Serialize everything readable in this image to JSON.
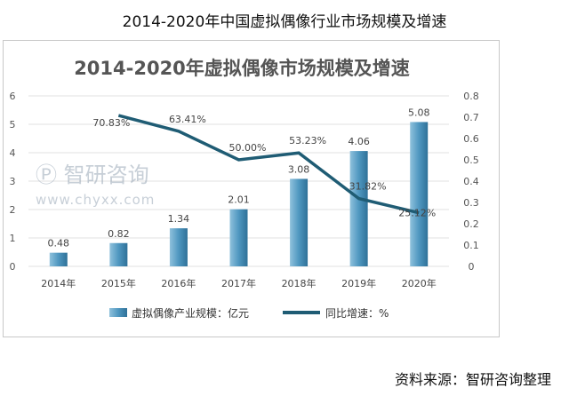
{
  "page_title": "2014-2020年中国虚拟偶像行业市场规模及增速",
  "source": "资料来源：智研咨询整理",
  "watermark": {
    "brand": "智研咨询",
    "url": "www.chyxx.com"
  },
  "chart_data": {
    "type": "bar+line",
    "title": "2014-2020年虚拟偶像市场规模及增速",
    "categories": [
      "2014年",
      "2015年",
      "2016年",
      "2017年",
      "2018年",
      "2019年",
      "2020年"
    ],
    "series": [
      {
        "name": "虚拟偶像产业规模：亿元",
        "type": "bar",
        "axis": "left",
        "values": [
          0.48,
          0.82,
          1.34,
          2.01,
          3.08,
          4.06,
          5.08
        ],
        "labels": [
          "0.48",
          "0.82",
          "1.34",
          "2.01",
          "3.08",
          "4.06",
          "5.08"
        ],
        "color": "#4a90b8"
      },
      {
        "name": "同比增速：%",
        "type": "line",
        "axis": "right",
        "values": [
          null,
          0.7083,
          0.6341,
          0.5,
          0.5323,
          0.3182,
          0.2512
        ],
        "labels": [
          "",
          "70.83%",
          "63.41%",
          "50.00%",
          "53.23%",
          "31.82%",
          "25.12%"
        ],
        "color": "#1f5c74"
      }
    ],
    "y_left": {
      "min": 0,
      "max": 6,
      "ticks": [
        "0",
        "1",
        "2",
        "3",
        "4",
        "5",
        "6"
      ]
    },
    "y_right": {
      "min": 0,
      "max": 0.8,
      "ticks": [
        "0",
        "0.1",
        "0.2",
        "0.3",
        "0.4",
        "0.5",
        "0.6",
        "0.7",
        "0.8"
      ]
    },
    "grid": true,
    "legend": "bottom"
  }
}
